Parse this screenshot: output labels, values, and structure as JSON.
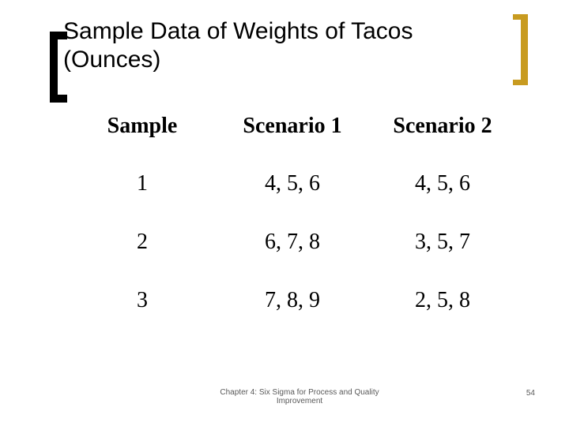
{
  "slide": {
    "title": "Sample Data of Weights of Tacos (Ounces)",
    "footer": "Chapter 4: Six Sigma for Process and Quality Improvement",
    "page_number": "54"
  },
  "table": {
    "headers": [
      "Sample",
      "Scenario 1",
      "Scenario 2"
    ],
    "rows": [
      {
        "sample": "1",
        "scenario1": "4, 5, 6",
        "scenario2": "4, 5, 6"
      },
      {
        "sample": "2",
        "scenario1": "6, 7, 8",
        "scenario2": "3, 5, 7"
      },
      {
        "sample": "3",
        "scenario1": "7, 8, 9",
        "scenario2": "2, 5, 8"
      }
    ]
  },
  "decorations": {
    "left_bracket_color": "#000000",
    "right_bracket_color": "#c89b20",
    "accent_bar_color": "#c5c189"
  }
}
